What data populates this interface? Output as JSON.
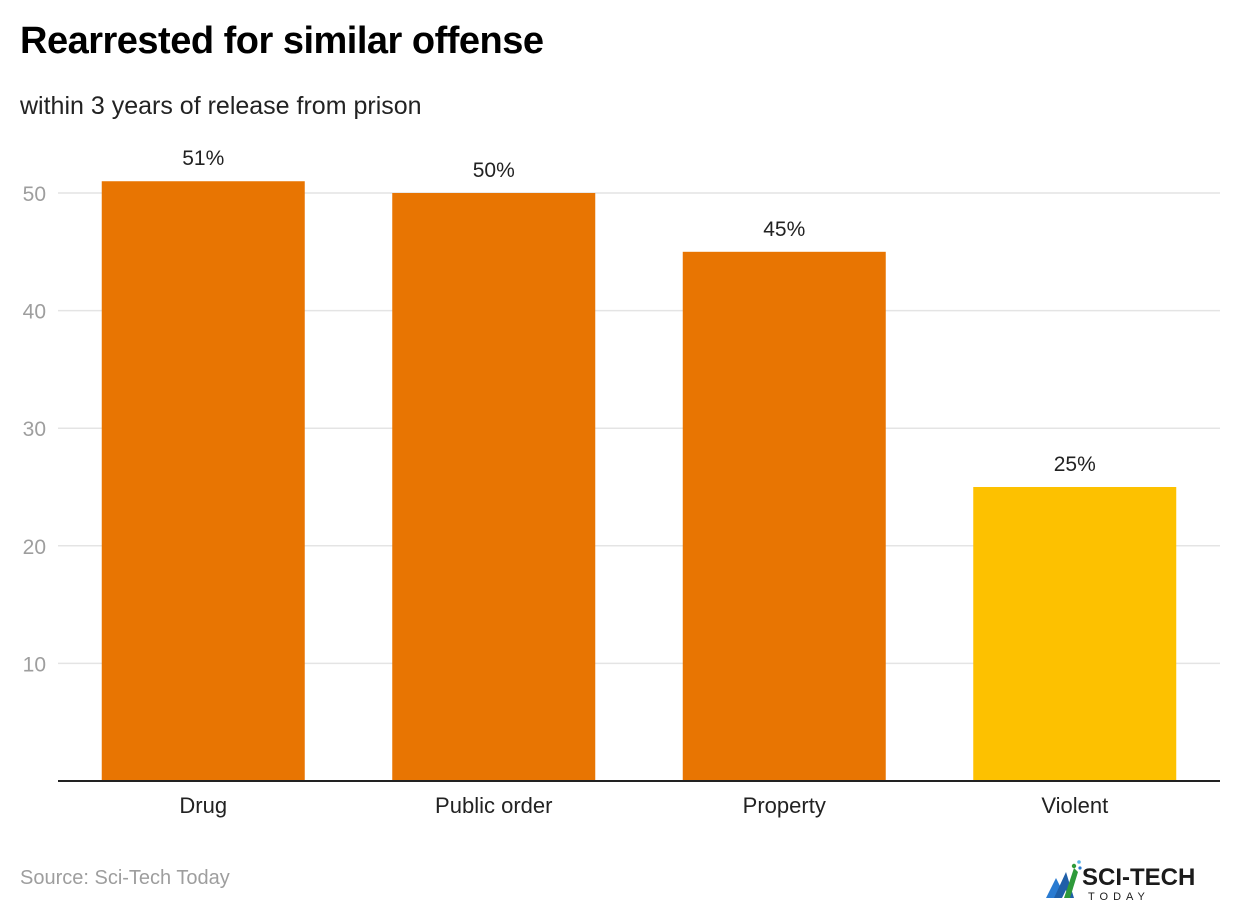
{
  "chart_data": {
    "type": "bar",
    "title": "Rearrested for similar offense",
    "subtitle": "within 3 years of release from prison",
    "categories": [
      "Drug",
      "Public order",
      "Property",
      "Violent"
    ],
    "values": [
      51,
      50,
      45,
      25
    ],
    "data_labels": [
      "51%",
      "50%",
      "45%",
      "25%"
    ],
    "bar_colors": [
      "#e87502",
      "#e87502",
      "#e87502",
      "#fdc100"
    ],
    "xlabel": "",
    "ylabel": "",
    "ylim": [
      0,
      55
    ],
    "yticks": [
      10,
      20,
      30,
      40,
      50
    ],
    "ytick_labels": [
      "10",
      "20",
      "30",
      "40",
      "50"
    ],
    "grid": true,
    "legend": "none"
  },
  "footer": {
    "source": "Source: Sci-Tech Today",
    "logo_text_main": "SCI-TECH",
    "logo_text_sub": "TODAY"
  },
  "colors": {
    "grid": "#e4e4e4",
    "axis": "#222222",
    "tick_label": "#9e9e9e",
    "data_label": "#222222",
    "category_label": "#222222"
  }
}
